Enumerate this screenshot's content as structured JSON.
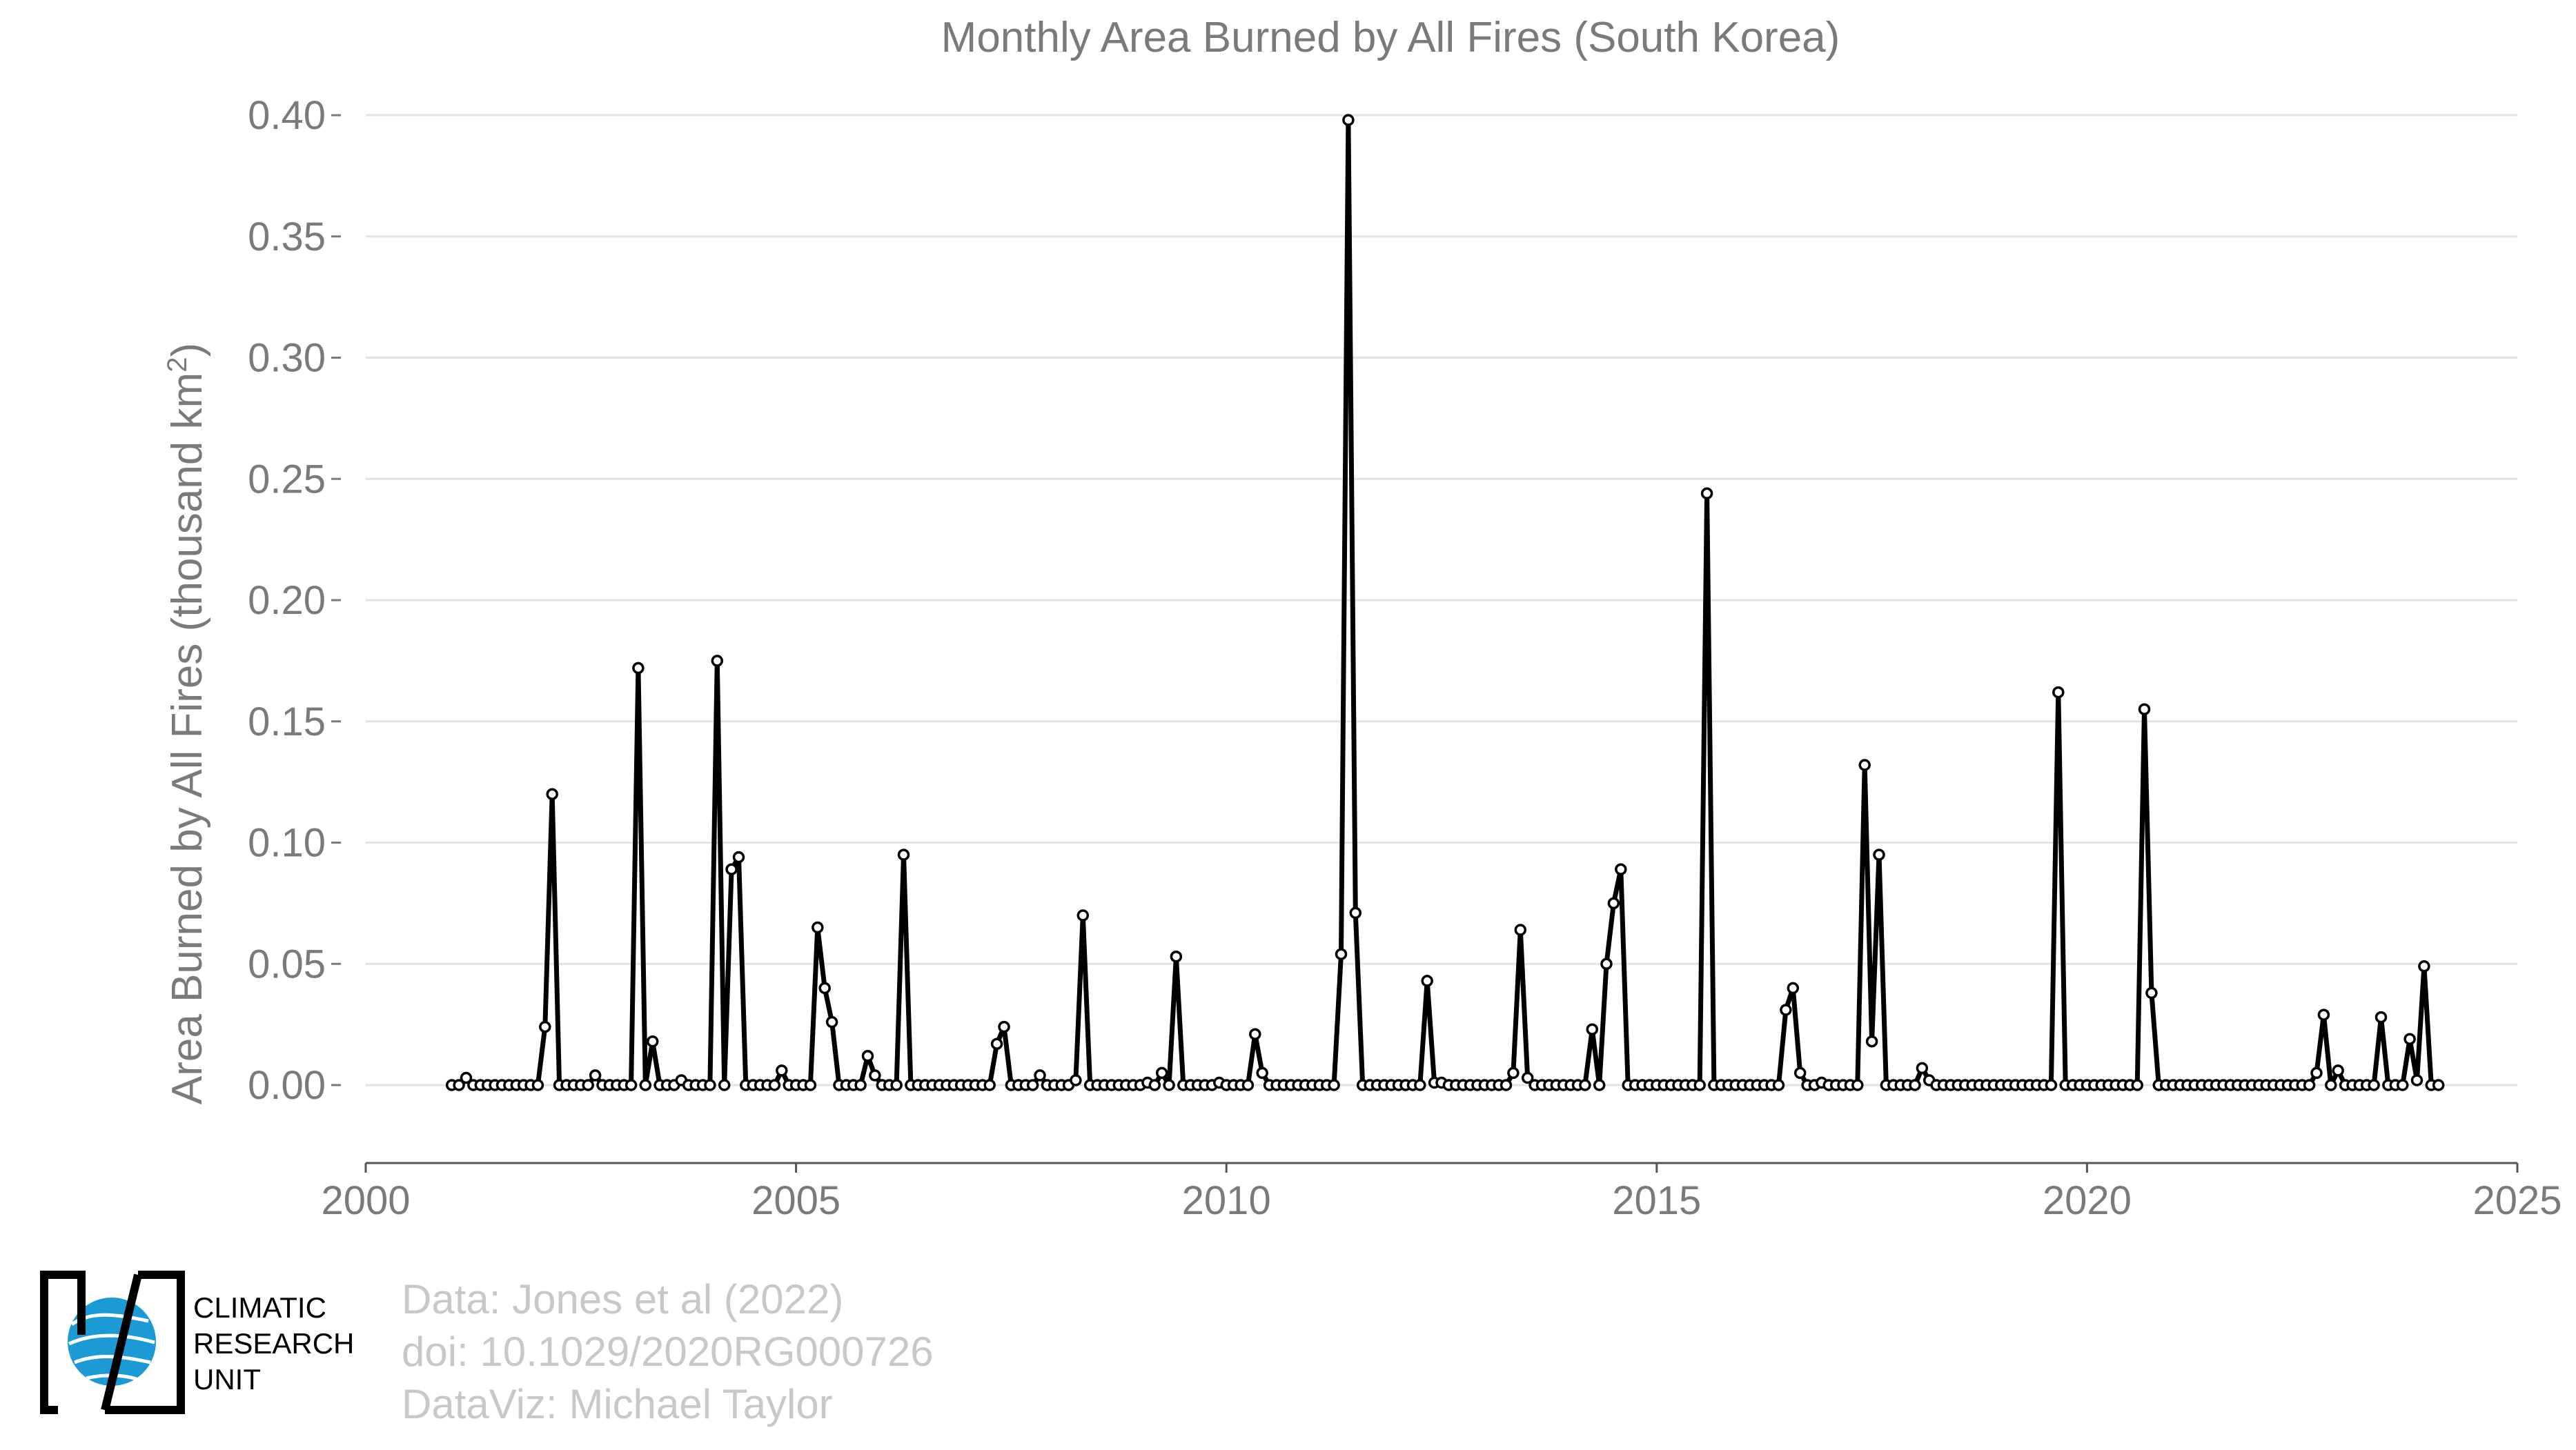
{
  "chart_data": {
    "type": "line",
    "title": "Monthly Area Burned by All Fires (South Korea)",
    "ylabel": "Area Burned by All Fires (thousand km",
    "ylabel_superscript": "2",
    "ylabel_suffix": ")",
    "xlabel": "",
    "xlim": [
      2000,
      2025
    ],
    "ylim": [
      0.0,
      0.4
    ],
    "xticks": [
      "2000",
      "2005",
      "2010",
      "2015",
      "2020",
      "2025"
    ],
    "yticks": [
      "0.00",
      "0.05",
      "0.10",
      "0.15",
      "0.20",
      "0.25",
      "0.30",
      "0.35",
      "0.40"
    ],
    "grid": "horizontal",
    "legend": "none",
    "line_color": "#000000",
    "marker_fill": "#ffffff",
    "series": [
      {
        "start": "2001-01",
        "values": [
          0,
          0,
          0.003,
          0,
          0,
          0,
          0,
          0,
          0,
          0,
          0,
          0,
          0,
          0.024,
          0.12,
          0,
          0,
          0,
          0,
          0,
          0.004,
          0,
          0,
          0,
          0,
          0,
          0.172,
          0,
          0.018,
          0,
          0,
          0,
          0.002,
          0,
          0,
          0,
          0,
          0.175,
          0,
          0.089,
          0.094,
          0,
          0,
          0,
          0,
          0,
          0.006,
          0,
          0,
          0,
          0,
          0.065,
          0.04,
          0.026,
          0,
          0,
          0,
          0,
          0.012,
          0.004,
          0,
          0,
          0,
          0.095,
          0,
          0,
          0,
          0,
          0,
          0,
          0,
          0,
          0,
          0,
          0,
          0,
          0.017,
          0.024,
          0,
          0,
          0,
          0,
          0.004,
          0,
          0,
          0,
          0,
          0.002,
          0.07,
          0,
          0,
          0,
          0,
          0,
          0,
          0,
          0,
          0.001,
          0,
          0.005,
          0,
          0.053,
          0,
          0,
          0,
          0,
          0,
          0.001,
          0,
          0,
          0,
          0,
          0.021,
          0.005,
          0,
          0,
          0,
          0,
          0,
          0,
          0,
          0,
          0,
          0,
          0.054,
          0.398,
          0.071,
          0,
          0,
          0,
          0,
          0,
          0,
          0,
          0,
          0,
          0.043,
          0.001,
          0.001,
          0,
          0,
          0,
          0,
          0,
          0,
          0,
          0,
          0,
          0.005,
          0.064,
          0.003,
          0,
          0,
          0,
          0,
          0,
          0,
          0,
          0,
          0.023,
          0,
          0.05,
          0.075,
          0.089,
          0,
          0,
          0,
          0,
          0,
          0,
          0,
          0,
          0,
          0,
          0,
          0.244,
          0,
          0,
          0,
          0,
          0,
          0,
          0,
          0,
          0,
          0,
          0.031,
          0.04,
          0.005,
          0,
          0,
          0.001,
          0,
          0,
          0,
          0,
          0,
          0.132,
          0.018,
          0.095,
          0,
          0,
          0,
          0,
          0,
          0.007,
          0.002,
          0,
          0,
          0,
          0,
          0,
          0,
          0,
          0,
          0,
          0,
          0,
          0,
          0,
          0,
          0,
          0,
          0,
          0.162,
          0,
          0,
          0,
          0,
          0,
          0,
          0,
          0,
          0,
          0,
          0,
          0.155,
          0.038,
          0,
          0,
          0,
          0,
          0,
          0,
          0,
          0,
          0,
          0,
          0,
          0,
          0,
          0,
          0,
          0,
          0,
          0,
          0,
          0,
          0,
          0,
          0.005,
          0.029,
          0,
          0.006,
          0,
          0,
          0,
          0,
          0,
          0.028,
          0,
          0,
          0,
          0.019,
          0.002,
          0.049,
          0,
          0
        ]
      }
    ]
  },
  "credits": {
    "line1": "Data: Jones et al (2022)",
    "line2": "doi: 10.1029/2020RG000726",
    "line3": "DataViz: Michael Taylor"
  },
  "logo": {
    "line1": "CLIMATIC",
    "line2": "RESEARCH",
    "line3": "UNIT",
    "globe_color": "#1b9ad6"
  }
}
